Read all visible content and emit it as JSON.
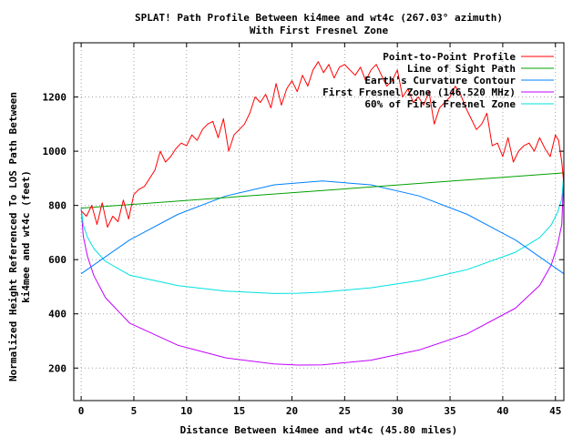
{
  "chart_data": {
    "type": "line",
    "title": "SPLAT! Path Profile Between ki4mee and wt4c (267.03° azimuth)",
    "subtitle": "With First Fresnel Zone",
    "xlabel": "Distance Between ki4mee and wt4c (45.80 miles)",
    "ylabel_line1": "Normalized Height Referenced To LOS Path Between",
    "ylabel_line2": "ki4mee and wt4c (feet)",
    "xlim": [
      -0.7,
      45.8
    ],
    "ylim": [
      80,
      1400
    ],
    "xticks": [
      0,
      5,
      10,
      15,
      20,
      25,
      30,
      35,
      40,
      45
    ],
    "yticks": [
      200,
      400,
      600,
      800,
      1000,
      1200
    ],
    "grid": true,
    "legend_position": "top-right",
    "series": [
      {
        "name": "Point-to-Point Profile",
        "color": "#ff0000",
        "x": [
          0,
          0.5,
          1,
          1.5,
          2,
          2.5,
          3,
          3.5,
          4,
          4.5,
          5,
          5.5,
          6,
          6.5,
          7,
          7.5,
          8,
          8.5,
          9,
          9.5,
          10,
          10.5,
          11,
          11.5,
          12,
          12.5,
          13,
          13.5,
          14,
          14.5,
          15,
          15.5,
          16,
          16.5,
          17,
          17.5,
          18,
          18.5,
          19,
          19.5,
          20,
          20.5,
          21,
          21.5,
          22,
          22.5,
          23,
          23.5,
          24,
          24.5,
          25,
          25.5,
          26,
          26.5,
          27,
          27.5,
          28,
          28.5,
          29,
          29.5,
          30,
          30.5,
          31,
          31.5,
          32,
          32.5,
          33,
          33.5,
          34,
          34.5,
          35,
          35.5,
          36,
          36.5,
          37,
          37.5,
          38,
          38.5,
          39,
          39.5,
          40,
          40.5,
          41,
          41.5,
          42,
          42.5,
          43,
          43.5,
          44,
          44.5,
          45,
          45.3,
          45.6,
          45.8
        ],
        "y": [
          780,
          760,
          800,
          730,
          810,
          720,
          760,
          740,
          820,
          750,
          840,
          860,
          870,
          900,
          930,
          1000,
          960,
          980,
          1010,
          1030,
          1020,
          1060,
          1040,
          1080,
          1100,
          1110,
          1050,
          1120,
          1000,
          1060,
          1080,
          1100,
          1140,
          1200,
          1180,
          1210,
          1160,
          1250,
          1170,
          1230,
          1260,
          1220,
          1280,
          1240,
          1300,
          1330,
          1290,
          1320,
          1270,
          1310,
          1320,
          1300,
          1280,
          1310,
          1260,
          1300,
          1320,
          1280,
          1240,
          1260,
          1300,
          1200,
          1230,
          1180,
          1200,
          1170,
          1220,
          1100,
          1160,
          1180,
          1200,
          1240,
          1210,
          1160,
          1120,
          1080,
          1100,
          1140,
          1020,
          1030,
          980,
          1050,
          960,
          1000,
          1020,
          1030,
          1000,
          1050,
          1010,
          980,
          1060,
          1040,
          960,
          880
        ]
      },
      {
        "name": "Line of Sight Path",
        "color": "#00a000",
        "x": [
          0,
          45.8
        ],
        "y": [
          790,
          920
        ]
      },
      {
        "name": "Earth's Curvature Contour",
        "color": "#0080ff",
        "x": [
          0,
          4.58,
          9.16,
          13.74,
          18.32,
          22.9,
          27.48,
          32.06,
          36.64,
          41.22,
          45.8
        ],
        "y": [
          548,
          672,
          767,
          835,
          876,
          890,
          876,
          835,
          767,
          672,
          548
        ]
      },
      {
        "name": "First Fresnel Zone (146.520 MHz)",
        "color": "#c000ff",
        "x": [
          0,
          0.2,
          0.6,
          1.2,
          2.3,
          4.6,
          9.2,
          13.7,
          18.3,
          20.6,
          22.9,
          27.5,
          32.1,
          36.6,
          41.2,
          43.5,
          44.6,
          45.2,
          45.6,
          45.8
        ],
        "y": [
          790,
          687,
          612,
          541,
          460,
          366,
          284,
          238,
          215,
          211,
          212,
          229,
          267,
          326,
          421,
          505,
          580,
          655,
          730,
          920
        ]
      },
      {
        "name": "60% of First Fresnel Zone",
        "color": "#00e0e0",
        "x": [
          0,
          0.2,
          0.6,
          1.2,
          2.3,
          4.6,
          9.2,
          13.7,
          18.3,
          20.6,
          22.9,
          27.5,
          32.1,
          36.6,
          41.2,
          43.5,
          44.6,
          45.2,
          45.6,
          45.8
        ],
        "y": [
          790,
          728,
          683,
          641,
          594,
          543,
          504,
          484,
          475,
          476,
          480,
          496,
          523,
          563,
          627,
          681,
          728,
          775,
          823,
          920
        ]
      }
    ]
  }
}
